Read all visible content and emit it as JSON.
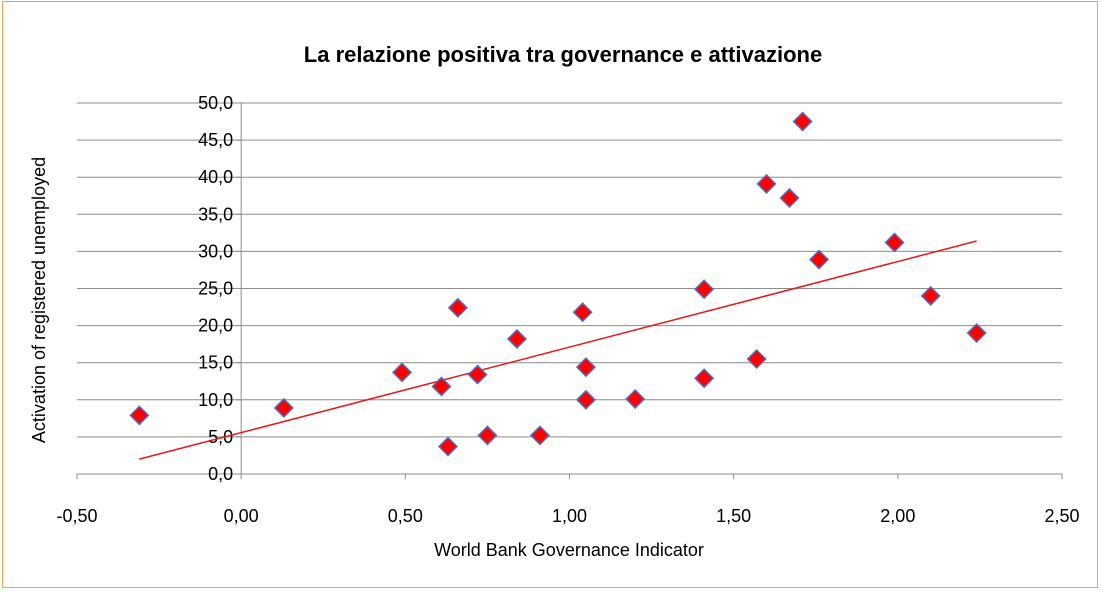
{
  "chart_data": {
    "type": "scatter",
    "title": "La relazione positiva tra governance e attivazione",
    "xlabel": "World Bank Governance Indicator",
    "ylabel": "Activation of registered unemployed",
    "xlim": [
      -0.5,
      2.5
    ],
    "ylim": [
      0,
      50
    ],
    "x_ticks": [
      -0.5,
      0,
      0.5,
      1.0,
      1.5,
      2.0,
      2.5
    ],
    "x_tick_labels": [
      "-0,50",
      "0,00",
      "0,50",
      "1,00",
      "1,50",
      "2,00",
      "2,50"
    ],
    "y_ticks": [
      0,
      5,
      10,
      15,
      20,
      25,
      30,
      35,
      40,
      45,
      50
    ],
    "y_tick_labels": [
      "0,0",
      "5,0",
      "10,0",
      "15,0",
      "20,0",
      "25,0",
      "30,0",
      "35,0",
      "40,0",
      "45,0",
      "50,0"
    ],
    "grid": "horizontal",
    "marker_color": "#ff0000",
    "marker_edge_color": "#4f6fc0",
    "trendline_color": "#e41a1a",
    "points": [
      {
        "x": -0.31,
        "y": 7.9
      },
      {
        "x": 0.13,
        "y": 8.9
      },
      {
        "x": 0.49,
        "y": 13.7
      },
      {
        "x": 0.61,
        "y": 11.8
      },
      {
        "x": 0.63,
        "y": 3.7
      },
      {
        "x": 0.66,
        "y": 22.4
      },
      {
        "x": 0.72,
        "y": 13.4
      },
      {
        "x": 0.75,
        "y": 5.2
      },
      {
        "x": 0.84,
        "y": 18.2
      },
      {
        "x": 0.91,
        "y": 5.2
      },
      {
        "x": 1.04,
        "y": 21.8
      },
      {
        "x": 1.05,
        "y": 14.4
      },
      {
        "x": 1.05,
        "y": 10.0
      },
      {
        "x": 1.2,
        "y": 10.1
      },
      {
        "x": 1.41,
        "y": 24.9
      },
      {
        "x": 1.41,
        "y": 12.9
      },
      {
        "x": 1.57,
        "y": 15.5
      },
      {
        "x": 1.6,
        "y": 39.1
      },
      {
        "x": 1.67,
        "y": 37.2
      },
      {
        "x": 1.71,
        "y": 47.5
      },
      {
        "x": 1.76,
        "y": 28.9
      },
      {
        "x": 1.99,
        "y": 31.2
      },
      {
        "x": 2.1,
        "y": 24.0
      },
      {
        "x": 2.24,
        "y": 19.0
      }
    ],
    "trendline": {
      "x": [
        -0.31,
        2.24
      ],
      "y": [
        2.0,
        31.4
      ]
    }
  }
}
